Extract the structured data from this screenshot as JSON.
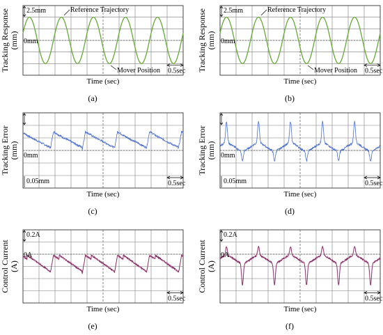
{
  "panels": [
    {
      "id": "a",
      "label": "(a)",
      "ylabel": "Tracking Response (mm)",
      "ylabel_lines": [
        "Tracking Response",
        "(mm)"
      ],
      "xlabel": "Time (sec)",
      "zero_label": "0mm",
      "scale_label": "2.5mm",
      "time_scale": "0.5sec",
      "ref_label": "Reference Trajectory",
      "mover_label": "Mover Position"
    },
    {
      "id": "b",
      "label": "(b)",
      "ylabel": "Tracking Response (mm)",
      "ylabel_lines": [
        "Tracking Response",
        "(mm)"
      ],
      "xlabel": "Time (sec)",
      "zero_label": "0mm",
      "scale_label": "2.5mm",
      "time_scale": "0.5sec",
      "ref_label": "Reference Trajectory",
      "mover_label": "Mover Position"
    },
    {
      "id": "c",
      "label": "(c)",
      "ylabel": "Tracking Error (mm)",
      "ylabel_lines": [
        "Tracking Error",
        "(mm)"
      ],
      "xlabel": "Time (sec)",
      "zero_label": "0mm",
      "scale_label": "0.05mm",
      "time_scale": "0.5sec"
    },
    {
      "id": "d",
      "label": "(d)",
      "ylabel": "Tracking Error (mm)",
      "ylabel_lines": [
        "Tracking Error",
        "(mm)"
      ],
      "xlabel": "Time (sec)",
      "zero_label": "0mm",
      "scale_label": "0.05mm",
      "time_scale": "0.5sec"
    },
    {
      "id": "e",
      "label": "(e)",
      "ylabel": "Control Current (A)",
      "ylabel_lines": [
        "Control Current",
        "(A)"
      ],
      "xlabel": "Time (sec)",
      "zero_label": "0A",
      "scale_label": "0.2A",
      "time_scale": "0.5sec"
    },
    {
      "id": "f",
      "label": "(f)",
      "ylabel": "Control Current (A)",
      "ylabel_lines": [
        "Control Current",
        "(A)"
      ],
      "xlabel": "Time (sec)",
      "zero_label": "0A",
      "scale_label": "0.2A",
      "time_scale": "0.5sec"
    }
  ],
  "colors": {
    "grid": "#7a7a7a",
    "response": "#5aa02c",
    "error": "#4a6fd0",
    "current": "#7a2a5a",
    "current_ref": "#d060b0",
    "frame": "#333333"
  },
  "chart_data": [
    {
      "type": "line",
      "panel": "a",
      "xlabel": "Time (sec)",
      "ylabel": "Tracking Response (mm)",
      "x_divisions": 10,
      "y_divisions": 6,
      "seconds_per_division": 0.5,
      "mm_per_division": 2.5,
      "series": [
        {
          "name": "Reference Trajectory",
          "function": "sine",
          "amplitude_div": 2.0,
          "period_sec": 1.0,
          "offset_div": 0
        },
        {
          "name": "Mover Position",
          "function": "sine",
          "amplitude_div": 2.0,
          "period_sec": 1.0,
          "offset_div": 0
        }
      ]
    },
    {
      "type": "line",
      "panel": "b",
      "xlabel": "Time (sec)",
      "ylabel": "Tracking Response (mm)",
      "x_divisions": 10,
      "y_divisions": 6,
      "seconds_per_division": 0.5,
      "mm_per_division": 2.5,
      "series": [
        {
          "name": "Reference Trajectory",
          "function": "sine",
          "amplitude_div": 2.0,
          "period_sec": 1.0,
          "offset_div": 0
        },
        {
          "name": "Mover Position",
          "function": "sine",
          "amplitude_div": 2.0,
          "period_sec": 1.0,
          "offset_div": 0
        }
      ]
    },
    {
      "type": "line",
      "panel": "c",
      "xlabel": "Time (sec)",
      "ylabel": "Tracking Error (mm)",
      "x_divisions": 10,
      "y_divisions": 6,
      "seconds_per_division": 0.5,
      "mm_per_division": 0.05,
      "series": [
        {
          "period_sec": 1.0,
          "shape": "sawtooth",
          "min_div": 0.1,
          "max_div": 1.5,
          "noise_div": 0.08
        }
      ]
    },
    {
      "type": "line",
      "panel": "d",
      "xlabel": "Time (sec)",
      "ylabel": "Tracking Error (mm)",
      "x_divisions": 10,
      "y_divisions": 6,
      "seconds_per_division": 0.5,
      "mm_per_division": 0.05,
      "series": [
        {
          "period_sec": 1.0,
          "shape": "double-spike",
          "min_div": -0.6,
          "max_div": 2.0,
          "noise_div": 0.08
        }
      ]
    },
    {
      "type": "line",
      "panel": "e",
      "xlabel": "Time (sec)",
      "ylabel": "Control Current (A)",
      "x_divisions": 10,
      "y_divisions": 6,
      "seconds_per_division": 0.5,
      "amps_per_division": 0.2,
      "series": [
        {
          "period_sec": 1.0,
          "shape": "sawtooth",
          "min_div": -1.6,
          "max_div": -0.1,
          "noise_div": 0.06
        }
      ]
    },
    {
      "type": "line",
      "panel": "f",
      "xlabel": "Time (sec)",
      "ylabel": "Control Current (A)",
      "x_divisions": 10,
      "y_divisions": 6,
      "seconds_per_division": 0.5,
      "amps_per_division": 0.2,
      "series": [
        {
          "period_sec": 1.0,
          "shape": "double-spike",
          "min_div": -2.4,
          "max_div": 0.3,
          "noise_div": 0.06
        }
      ]
    }
  ]
}
